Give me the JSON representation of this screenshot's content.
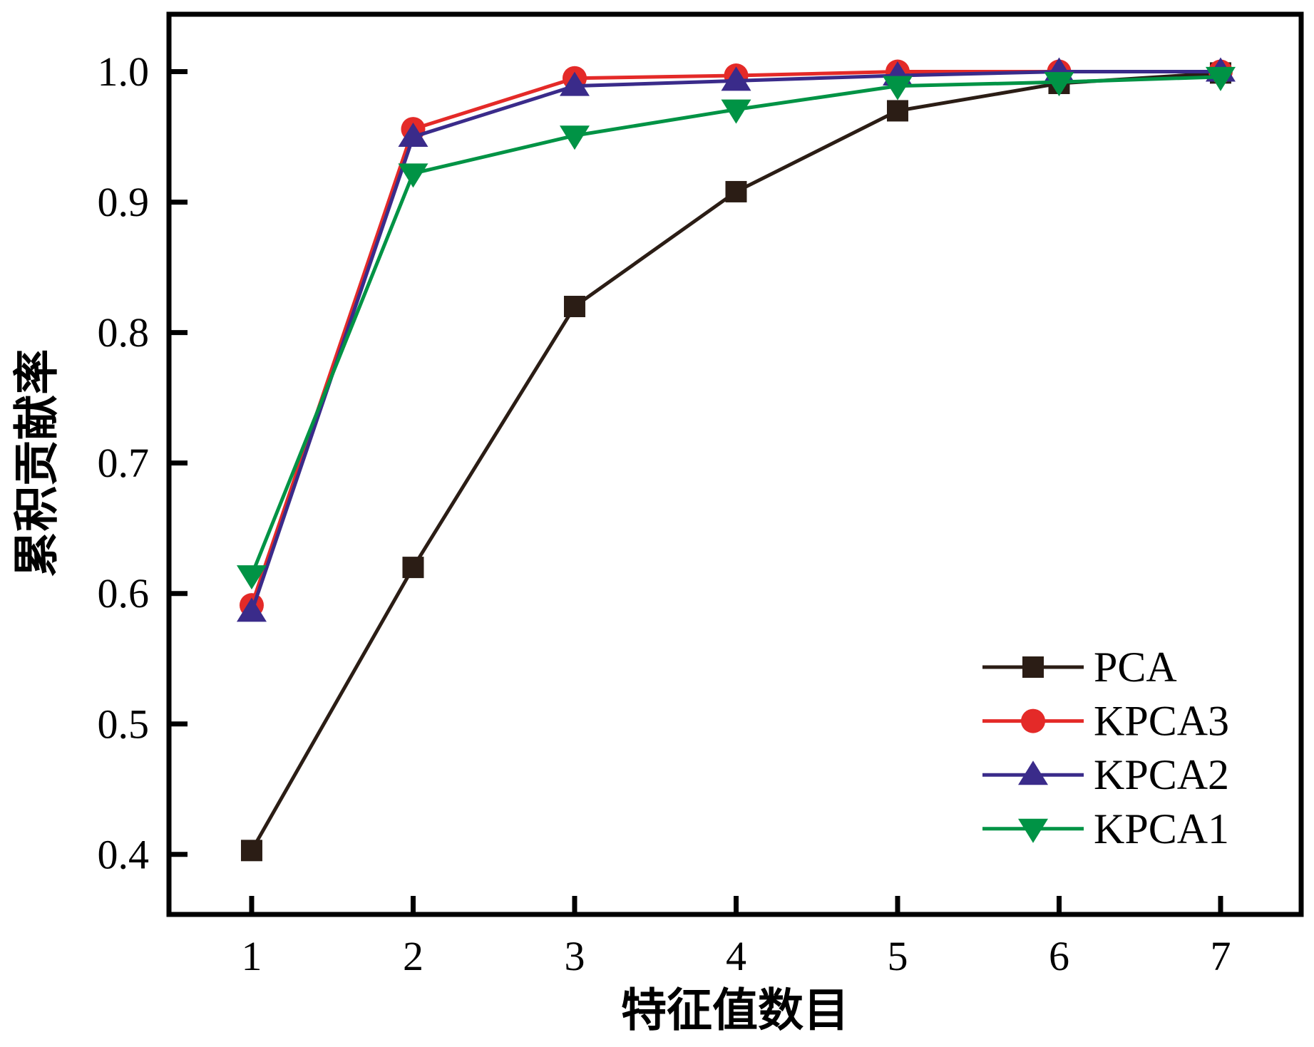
{
  "chart_data": {
    "type": "line",
    "title": "",
    "xlabel": "特征值数目",
    "ylabel": "累积贡献率",
    "x": [
      1,
      2,
      3,
      4,
      5,
      6,
      7
    ],
    "x_tick_labels": [
      "1",
      "2",
      "3",
      "4",
      "5",
      "6",
      "7"
    ],
    "y_ticks": [
      0.4,
      0.5,
      0.6,
      0.7,
      0.8,
      0.9,
      1.0
    ],
    "y_tick_labels": [
      "0.4",
      "0.5",
      "0.6",
      "0.7",
      "0.8",
      "0.9",
      "1.0"
    ],
    "xlim": [
      0.488,
      7.499
    ],
    "ylim": [
      0.354,
      1.044
    ],
    "grid": false,
    "legend_position": "lower right",
    "frame_color": "#000000",
    "series": [
      {
        "name": "PCA",
        "color": "#2b1d15",
        "marker": "square",
        "values": [
          0.403,
          0.62,
          0.82,
          0.908,
          0.97,
          0.991,
          0.999
        ]
      },
      {
        "name": "KPCA3",
        "color": "#e42a28",
        "marker": "circle",
        "values": [
          0.591,
          0.956,
          0.995,
          0.997,
          1.0,
          1.0,
          1.0
        ]
      },
      {
        "name": "KPCA2",
        "color": "#3a2b8a",
        "marker": "triangle-up",
        "values": [
          0.586,
          0.95,
          0.989,
          0.993,
          0.997,
          1.0,
          1.0
        ]
      },
      {
        "name": "KPCA1",
        "color": "#009345",
        "marker": "triangle-down",
        "values": [
          0.614,
          0.922,
          0.951,
          0.971,
          0.989,
          0.992,
          0.996
        ]
      }
    ],
    "legend_order": [
      "PCA",
      "KPCA3",
      "KPCA2",
      "KPCA1"
    ]
  }
}
